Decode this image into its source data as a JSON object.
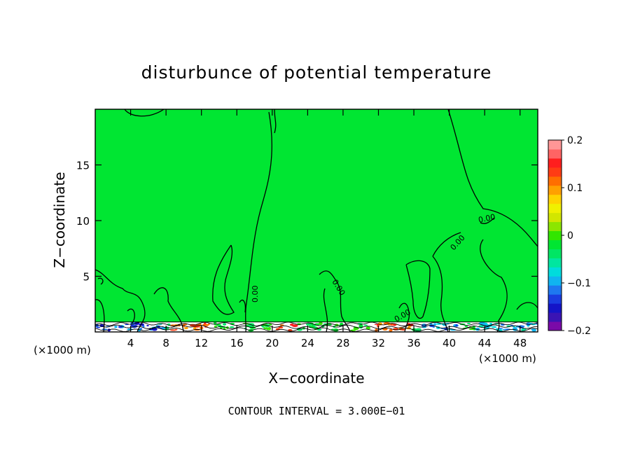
{
  "chart_data": {
    "type": "heatmap",
    "title": "disturbunce of potential temperature",
    "xlabel": "X−coordinate",
    "ylabel": "Z−coordinate",
    "x_unit": "(×1000 m)",
    "x_unit_right": "(×1000 m)",
    "xlim": [
      0,
      50
    ],
    "ylim": [
      0,
      20
    ],
    "x_ticks": [
      4,
      8,
      12,
      16,
      20,
      24,
      28,
      32,
      36,
      40,
      44,
      48
    ],
    "y_ticks": [
      5,
      10,
      15
    ],
    "x_tick_labels": [
      "4",
      "8",
      "12",
      "16",
      "20",
      "24",
      "28",
      "32",
      "36",
      "40",
      "44",
      "48"
    ],
    "y_tick_labels": [
      "5",
      "10",
      "15"
    ],
    "contour_labels": [
      "0.00",
      "0.00",
      "0.00",
      "0.00",
      "0.00"
    ],
    "footer": "CONTOUR INTERVAL = 3.000E−01",
    "colorbar": {
      "min": -0.2,
      "max": 0.2,
      "tick_values": [
        0.2,
        0.1,
        0,
        -0.1,
        -0.2
      ],
      "tick_labels": [
        "0.2",
        "0.1",
        "0",
        "−0.1",
        "−0.2"
      ],
      "colors": [
        "#7a0aa8",
        "#3a14b4",
        "#1414c8",
        "#1a3ce0",
        "#1e78f0",
        "#10b4f0",
        "#00dcdc",
        "#00e6a0",
        "#00e664",
        "#00e632",
        "#32e600",
        "#8ce600",
        "#d2e600",
        "#f0f000",
        "#ffd200",
        "#ffa000",
        "#ff6e00",
        "#ff3c14",
        "#ff1e1e",
        "#ff6464",
        "#ff9696"
      ]
    },
    "field": {
      "background_color": "#00e632",
      "near_surface_layer_top_z": 0.9
    }
  }
}
